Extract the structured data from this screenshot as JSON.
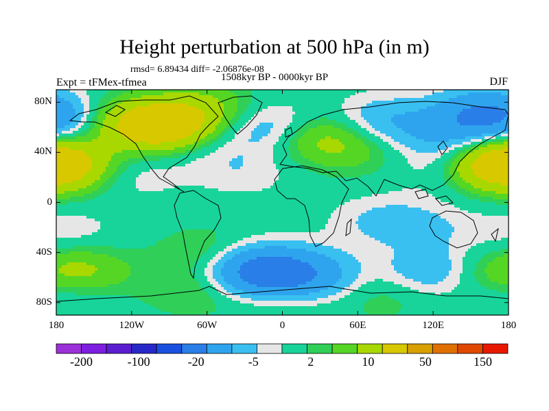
{
  "chart_data": {
    "type": "heatmap",
    "title": "Height perturbation at 500 hPa (in m)",
    "stats_text": "rmsd= 6.89434 diff= -2.06876e-08",
    "period_text": "1508kyr BP - 0000kyr BP",
    "experiment_text": "Expt = tFMex-tfmea",
    "season_text": "DJF",
    "xlim": [
      -180,
      180
    ],
    "ylim": [
      -90,
      90
    ],
    "x_ticks": [
      {
        "value": -180,
        "label": "180"
      },
      {
        "value": -120,
        "label": "120W"
      },
      {
        "value": -60,
        "label": "60W"
      },
      {
        "value": 0,
        "label": "0"
      },
      {
        "value": 60,
        "label": "60E"
      },
      {
        "value": 120,
        "label": "120E"
      },
      {
        "value": 180,
        "label": "180"
      }
    ],
    "y_ticks": [
      {
        "value": 80,
        "label": "80N"
      },
      {
        "value": 40,
        "label": "40N"
      },
      {
        "value": 0,
        "label": "0"
      },
      {
        "value": -40,
        "label": "40S"
      },
      {
        "value": -80,
        "label": "80S"
      }
    ],
    "colorbar": {
      "colors": [
        "#9b30d8",
        "#7d1ee0",
        "#5a1ed0",
        "#2828c8",
        "#1a50e0",
        "#2a7ee8",
        "#2fa4ee",
        "#3ac0f0",
        "#e6e6e6",
        "#18d49a",
        "#2fcf58",
        "#55d624",
        "#a8d800",
        "#d8c800",
        "#d8a000",
        "#e07000",
        "#e04800",
        "#e81800"
      ],
      "tick_labels": [
        "-200",
        "-100",
        "-20",
        "-5",
        "2",
        "10",
        "50",
        "150"
      ]
    },
    "anomalies": [
      {
        "lon": -95,
        "lat": 60,
        "value": 30
      },
      {
        "lon": -120,
        "lat": 65,
        "value": 10
      },
      {
        "lon": -60,
        "lat": 75,
        "value": 10
      },
      {
        "lon": -70,
        "lat": 45,
        "value": -5
      },
      {
        "lon": -10,
        "lat": 60,
        "value": -10
      },
      {
        "lon": 30,
        "lat": 52,
        "value": 12
      },
      {
        "lon": 60,
        "lat": 40,
        "value": 5
      },
      {
        "lon": 80,
        "lat": 65,
        "value": -10
      },
      {
        "lon": 130,
        "lat": 50,
        "value": -8
      },
      {
        "lon": 160,
        "lat": 70,
        "value": -20
      },
      {
        "lon": 175,
        "lat": 30,
        "value": 20
      },
      {
        "lon": -180,
        "lat": 30,
        "value": 20
      },
      {
        "lon": -175,
        "lat": 65,
        "value": -5
      },
      {
        "lon": -120,
        "lat": 22,
        "value": -4
      },
      {
        "lon": -30,
        "lat": 25,
        "value": -4
      },
      {
        "lon": 130,
        "lat": 25,
        "value": -4
      },
      {
        "lon": 80,
        "lat": -15,
        "value": -6
      },
      {
        "lon": 120,
        "lat": -20,
        "value": -4
      },
      {
        "lon": -170,
        "lat": -25,
        "value": -4
      },
      {
        "lon": -160,
        "lat": -55,
        "value": 12
      },
      {
        "lon": -175,
        "lat": -70,
        "value": -5
      },
      {
        "lon": -60,
        "lat": -40,
        "value": 6
      },
      {
        "lon": -70,
        "lat": -70,
        "value": 6
      },
      {
        "lon": -20,
        "lat": -55,
        "value": -25
      },
      {
        "lon": 20,
        "lat": -58,
        "value": -15
      },
      {
        "lon": 120,
        "lat": -55,
        "value": -10
      },
      {
        "lon": 160,
        "lat": -58,
        "value": 6
      },
      {
        "lon": 80,
        "lat": -75,
        "value": 4
      },
      {
        "lon": 0,
        "lat": -85,
        "value": 3
      }
    ]
  }
}
